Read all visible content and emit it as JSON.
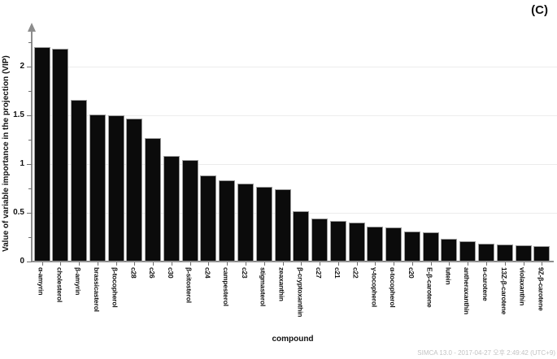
{
  "figure": {
    "corner_label": "(C)",
    "watermark": "SIMCA 13.0 - 2017-04-27 오후 2:49:42 (UTC+9)"
  },
  "chart_data": {
    "type": "bar",
    "title": "",
    "xlabel": "compound",
    "ylabel": "Value of variable importance in the projection (VIP)",
    "ylim": [
      0,
      2.4
    ],
    "grid": true,
    "legend_position": "none",
    "gridlines_at": [
      0.5,
      1,
      1.5,
      2
    ],
    "yticks_major": [
      0,
      0.5,
      1,
      1.5,
      2
    ],
    "ytick_labels": [
      "0",
      "0.5",
      "1",
      "1.5",
      "2"
    ],
    "yticks_minor": [
      0.25,
      0.75,
      1.25,
      1.75,
      2.25
    ],
    "bar_color": "#0b0b0b",
    "bar_border_color": "#9b9b9b",
    "axis_color": "#8c8c8c",
    "categories": [
      "α-amyrin",
      "cholesterol",
      "β-amyrin",
      "brassicasterol",
      "β-tocopherol",
      "c28",
      "c26",
      "c30",
      "β-sitosterol",
      "c24",
      "campesterol",
      "c23",
      "stigmasterol",
      "zeaxanthin",
      "β-cryptoxanthin",
      "c27",
      "c21",
      "c22",
      "γ-tocopherol",
      "α-tocopherol",
      "c20",
      "E-β-carotene",
      "lutein",
      "antheraxanthin",
      "α-carotene",
      "13Z-β-carotene",
      "violaxanthin",
      "9Z-β-carotene"
    ],
    "values": [
      2.2,
      2.18,
      1.66,
      1.51,
      1.5,
      1.47,
      1.27,
      1.08,
      1.04,
      0.88,
      0.83,
      0.8,
      0.77,
      0.74,
      0.52,
      0.44,
      0.42,
      0.4,
      0.36,
      0.35,
      0.31,
      0.3,
      0.23,
      0.21,
      0.18,
      0.175,
      0.165,
      0.155
    ]
  }
}
